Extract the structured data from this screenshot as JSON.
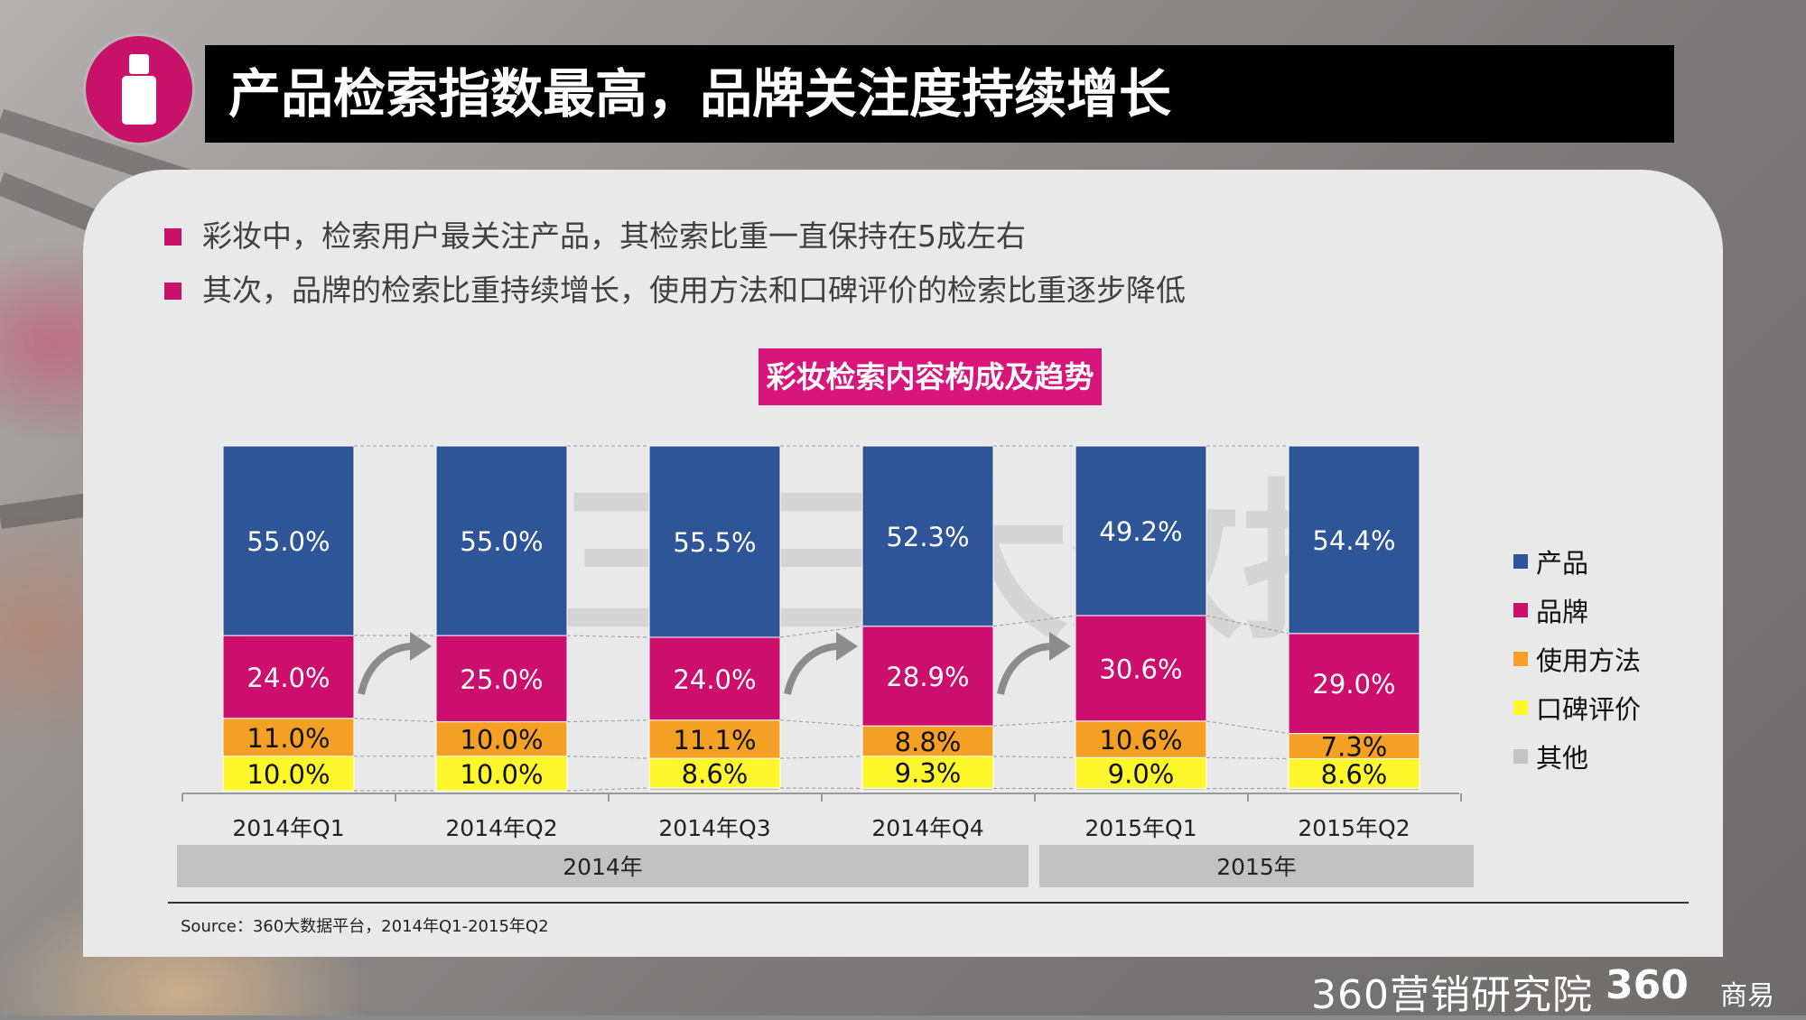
{
  "title": "产品检索指数最高，品牌关注度持续增长",
  "bullets": [
    "彩妆中，检索用户最关注产品，其检索比重一直保持在5成左右",
    "其次，品牌的检索比重持续增长，使用方法和口碑评价的检索比重逐步降低"
  ],
  "chart_title": "彩妆检索内容构成及趋势",
  "chart_data": {
    "type": "bar",
    "stacked": true,
    "categories": [
      "2014年Q1",
      "2014年Q2",
      "2014年Q3",
      "2014年Q4",
      "2015年Q1",
      "2015年Q2"
    ],
    "groups": [
      {
        "label": "2014年",
        "categories": [
          "2014年Q1",
          "2014年Q2",
          "2014年Q3",
          "2014年Q4"
        ]
      },
      {
        "label": "2015年",
        "categories": [
          "2015年Q1",
          "2015年Q2"
        ]
      }
    ],
    "series": [
      {
        "name": "产品",
        "color": "#2e5597",
        "values": [
          55.0,
          55.0,
          55.5,
          52.3,
          49.2,
          54.4
        ],
        "labels": [
          "55.0%",
          "55.0%",
          "55.5%",
          "52.3%",
          "49.2%",
          "54.4%"
        ]
      },
      {
        "name": "品牌",
        "color": "#cc0e6d",
        "values": [
          24.0,
          25.0,
          24.0,
          28.9,
          30.6,
          29.0
        ],
        "labels": [
          "24.0%",
          "25.0%",
          "24.0%",
          "28.9%",
          "30.6%",
          "29.0%"
        ]
      },
      {
        "name": "使用方法",
        "color": "#f4a024",
        "values": [
          11.0,
          10.0,
          11.1,
          8.8,
          10.6,
          7.3
        ],
        "labels": [
          "11.0%",
          "10.0%",
          "11.1%",
          "8.8%",
          "10.6%",
          "7.3%"
        ]
      },
      {
        "name": "口碑评价",
        "color": "#fdf72b",
        "values": [
          10.0,
          10.0,
          8.6,
          9.3,
          9.0,
          8.6
        ],
        "labels": [
          "10.0%",
          "10.0%",
          "8.6%",
          "9.3%",
          "9.0%",
          "8.6%"
        ]
      },
      {
        "name": "其他",
        "color": "#c4c4c4",
        "values": [
          0.0,
          0.0,
          0.8,
          0.7,
          0.6,
          0.7
        ],
        "labels": [
          "",
          "",
          "",
          "",
          "",
          ""
        ]
      }
    ],
    "ylim": [
      0,
      100
    ],
    "legend": "right",
    "grid": false
  },
  "source": "Source：360大数据平台，2014年Q1-2015年Q2",
  "brand": {
    "name": "360营销研究院",
    "logo": "360",
    "sub": "商易"
  },
  "watermark": "三三大数据",
  "icons": {
    "badge": "lipstick-icon",
    "arrow": "curved-arrow-icon"
  }
}
